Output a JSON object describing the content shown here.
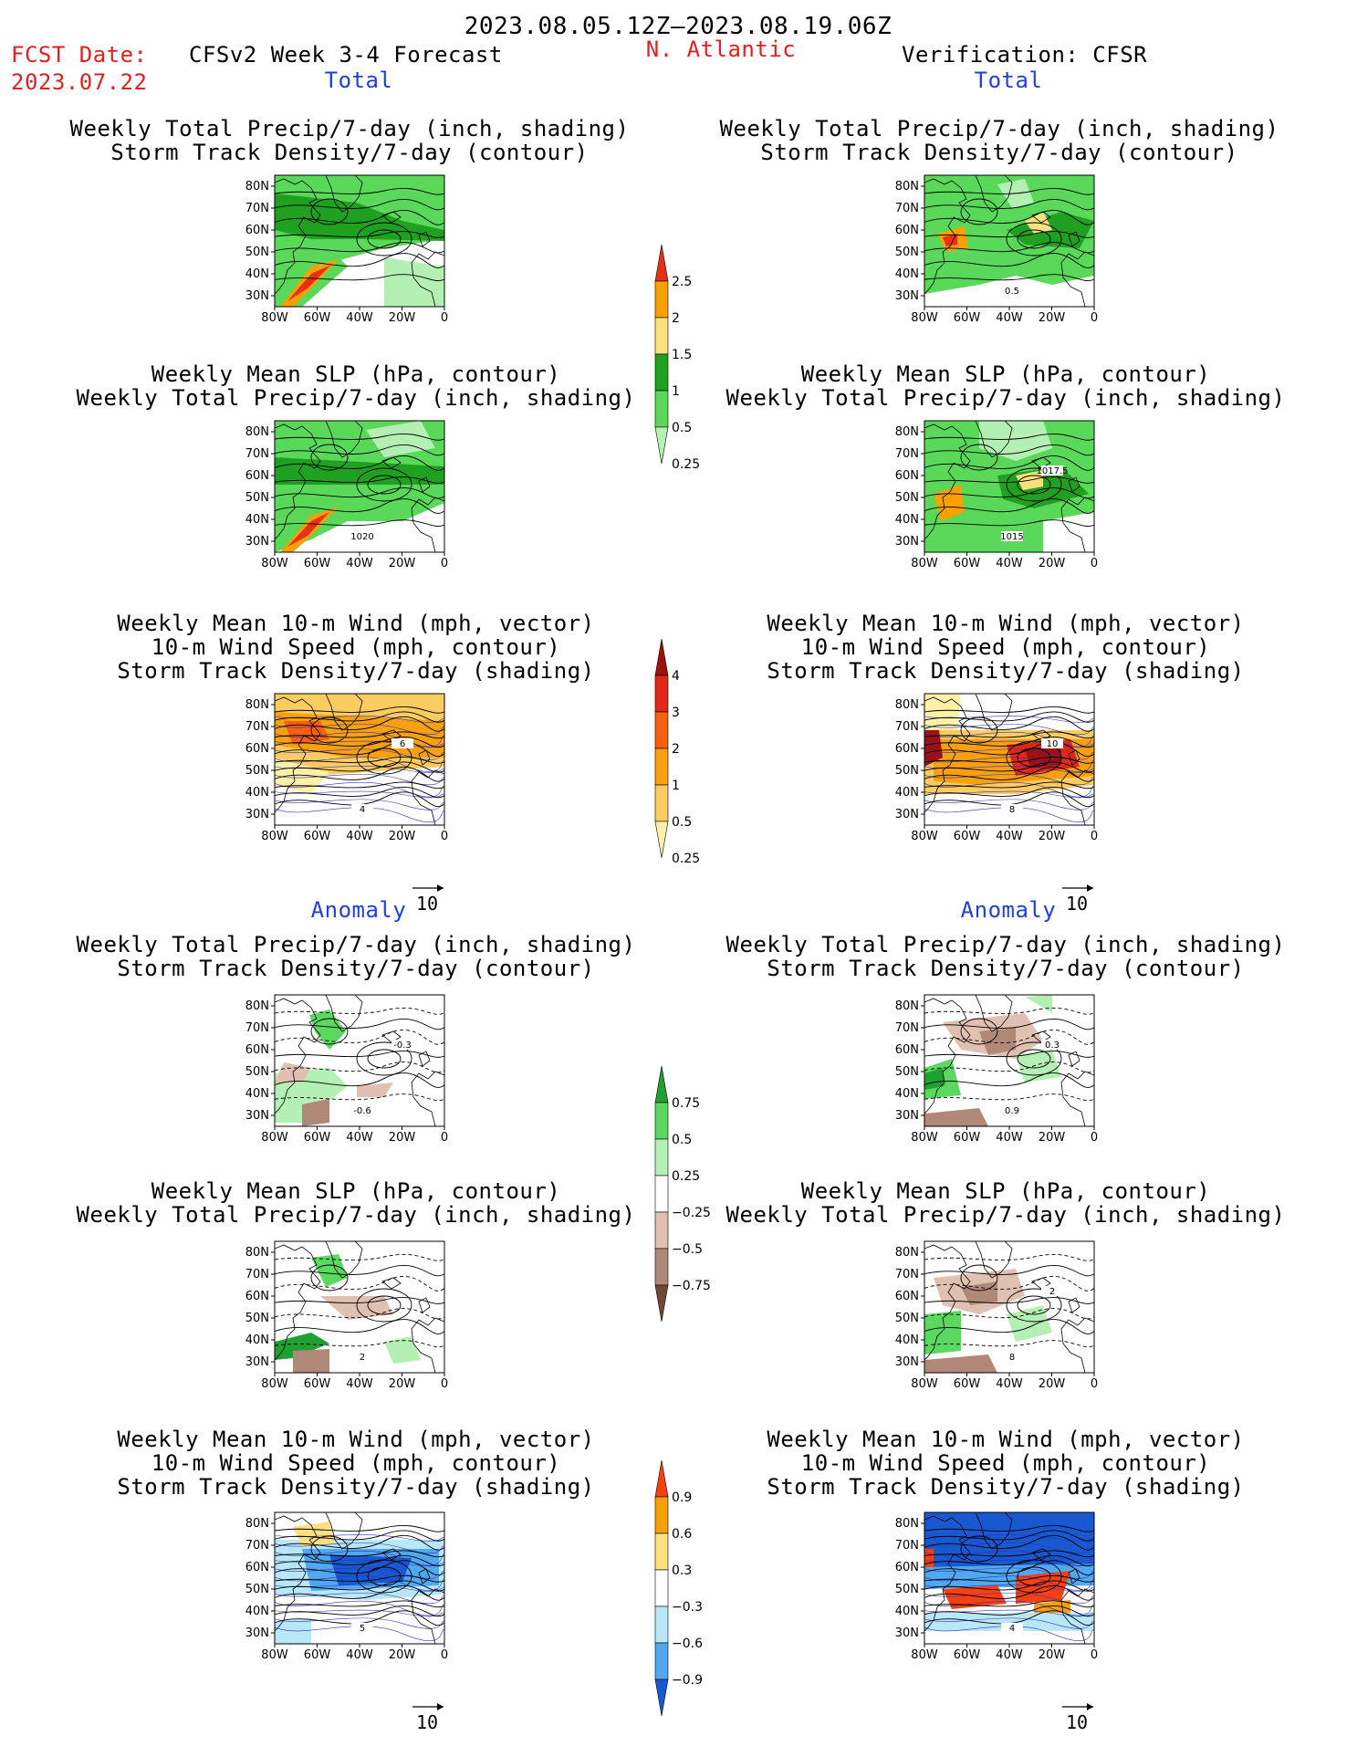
{
  "header": {
    "period": "2023.08.05.12Z–2023.08.19.06Z",
    "fcst_label": "FCST Date:",
    "fcst_date": "2023.07.22",
    "forecast_title": "CFSv2 Week 3-4 Forecast",
    "region": "N. Atlantic",
    "verification": "Verification: CFSR"
  },
  "sections": {
    "total": "Total",
    "anomaly": "Anomaly"
  },
  "titles": {
    "precip_track": [
      "Weekly Total Precip/7-day (inch, shading)",
      "Storm Track Density/7-day (contour)"
    ],
    "slp_precip": [
      "Weekly Mean SLP (hPa, contour)",
      "Weekly Total Precip/7-day (inch, shading)"
    ],
    "wind_track": [
      "Weekly Mean 10-m Wind (mph, vector)",
      "10-m Wind Speed (mph, contour)",
      "Storm Track Density/7-day (shading)"
    ]
  },
  "axes": {
    "lat_ticks": [
      "80N",
      "70N",
      "60N",
      "50N",
      "40N",
      "30N"
    ],
    "lon_ticks": [
      "80W",
      "60W",
      "40W",
      "20W",
      "0"
    ]
  },
  "colorbars": {
    "precip_total": {
      "labels": [
        "2.5",
        "2",
        "1.5",
        "1",
        "0.5",
        "0.25"
      ],
      "colors": [
        "#e83018",
        "#f8a000",
        "#fce080",
        "#20a020",
        "#5ad85a",
        "#b4f0b4"
      ]
    },
    "track_total": {
      "labels": [
        "4",
        "3",
        "2",
        "1",
        "0.5",
        "0.25"
      ],
      "colors": [
        "#a01010",
        "#e02818",
        "#f86010",
        "#f8a010",
        "#fccc60",
        "#fff0a8"
      ]
    },
    "precip_anom": {
      "labels": [
        "0.75",
        "0.5",
        "0.25",
        "−0.25",
        "−0.5",
        "−0.75"
      ],
      "colors": [
        "#20a030",
        "#5ad860",
        "#b4f0b4",
        "#ffffff",
        "#e0c0b0",
        "#b08878",
        "#704838"
      ]
    },
    "track_anom": {
      "labels": [
        "0.9",
        "0.6",
        "0.3",
        "−0.3",
        "−0.6",
        "−0.9"
      ],
      "colors": [
        "#f84010",
        "#f8a000",
        "#fce080",
        "#ffffff",
        "#b8e8f8",
        "#50a8f0",
        "#1858d0"
      ]
    }
  },
  "contour_labels": {
    "L_slp": "1020",
    "L_wind": "4",
    "L_wind2": "6",
    "R_precip": "0.5",
    "R_slp1": "1015",
    "R_slp2": "1017.5",
    "R_wind1": "8",
    "R_wind2": "10",
    "L_anom_p1": "-0.6",
    "L_anom_p2": "-0.3",
    "R_anom_p1": "0.9",
    "R_anom_p2": "0.3",
    "L_anom_s": "2",
    "R_anom_s1": "8",
    "R_anom_s2": "2",
    "L_anom_w": "5",
    "R_anom_w": "4"
  },
  "vector_ref": "10"
}
